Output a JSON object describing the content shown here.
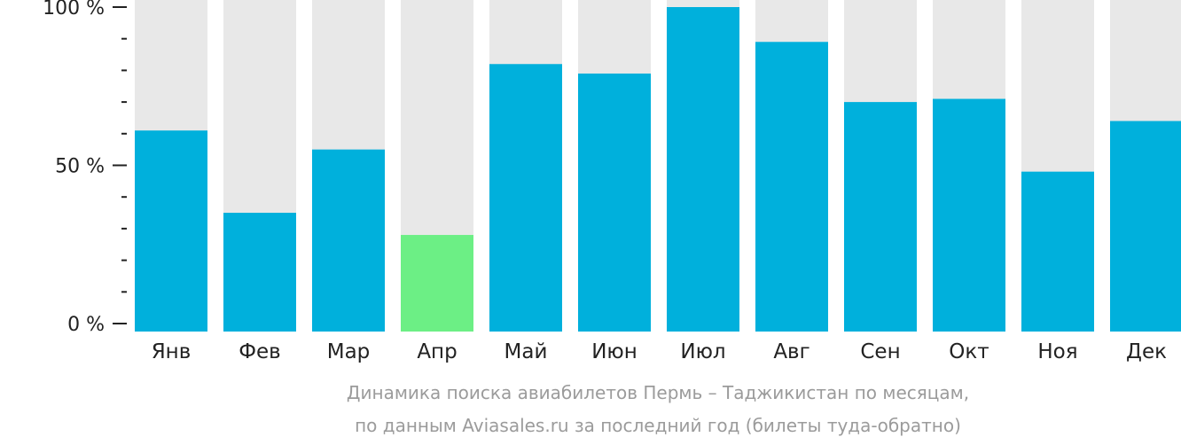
{
  "chart_data": {
    "type": "bar",
    "categories": [
      "Янв",
      "Фев",
      "Мар",
      "Апр",
      "Май",
      "Июн",
      "Июл",
      "Авг",
      "Сен",
      "Окт",
      "Ноя",
      "Дек"
    ],
    "values": [
      61,
      35,
      55,
      28,
      82,
      79,
      100,
      89,
      70,
      71,
      48,
      64
    ],
    "highlight_index": 3,
    "y_ticks": [
      {
        "value": 0,
        "label": "0 %"
      },
      {
        "value": 50,
        "label": "50 %"
      },
      {
        "value": 100,
        "label": "100 %"
      }
    ],
    "minor_ticks": [
      10,
      20,
      30,
      40,
      60,
      70,
      80,
      90
    ],
    "ylim": [
      0,
      100
    ],
    "caption_line1": "Динамика поиска авиабилетов Пермь – Таджикистан по месяцам,",
    "caption_line2": "по данным Aviasales.ru за последний год (билеты туда-обратно)",
    "colors": {
      "bar": "#00b0dc",
      "highlight": "#6cef85",
      "background_bar": "#e8e8e8",
      "axis_text": "#222222",
      "caption": "#9b9b9b"
    }
  }
}
